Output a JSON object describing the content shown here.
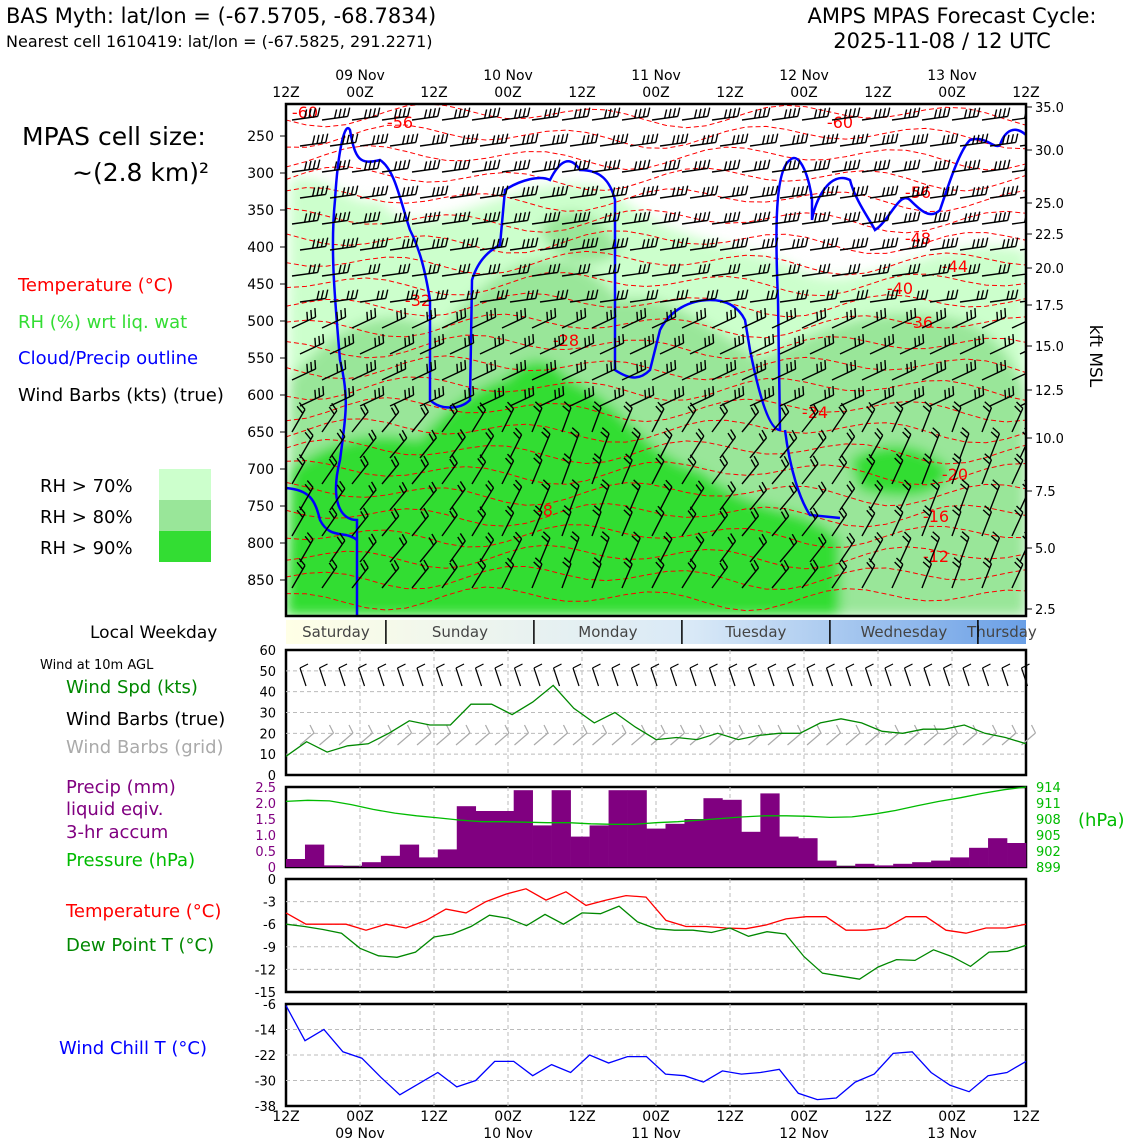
{
  "header": {
    "title_left": "BAS Myth: lat/lon = (-67.5705, -68.7834)",
    "subtitle_left": "Nearest cell 1610419: lat/lon = (-67.5825, 291.2271)",
    "title_right_1": "AMPS MPAS Forecast Cycle:",
    "title_right_2": "2025-11-08 / 12 UTC"
  },
  "legend": {
    "cell_size_1": "MPAS cell size:",
    "cell_size_2": "~(2.8 km)²",
    "temperature": "Temperature (°C)",
    "rh": "RH (%) wrt liq. wat",
    "cloud": "Cloud/Precip outline",
    "barbs": "Wind Barbs (kts) (true)",
    "rh70": "RH > 70%",
    "rh80": "RH > 80%",
    "rh90": "RH > 90%",
    "weekday_label": "Local Weekday",
    "wind10m": "Wind at 10m AGL",
    "wind_spd": "Wind Spd (kts)",
    "wind_barbs_true": "Wind Barbs (true)",
    "wind_barbs_grid": "Wind Barbs (grid)",
    "precip_1": "Precip (mm)",
    "precip_2": "liquid eqiv.",
    "precip_3": "3-hr accum",
    "pressure": "Pressure (hPa)",
    "hpa_unit": "(hPa)",
    "temp2": "Temperature (°C)",
    "dewpt": "Dew Point T (°C)",
    "windchill": "Wind Chill T (°C)",
    "kft_label": "kft MSL"
  },
  "colors": {
    "temp": "#ff0000",
    "rh_green": "#22bb22",
    "cloud": "#0000ff",
    "precip": "#800080",
    "pressure": "#00bb00",
    "dew": "#008800",
    "windchill": "#0000ff",
    "grid_barb": "#aaaaaa",
    "rh70": "#ccffcc",
    "rh80": "#99e699",
    "rh90": "#33dd33"
  },
  "time_axis": {
    "ticks": [
      "12Z",
      "00Z",
      "12Z",
      "00Z",
      "12Z",
      "00Z",
      "12Z",
      "00Z",
      "12Z",
      "00Z",
      "12Z"
    ],
    "days": [
      "09 Nov",
      "10 Nov",
      "11 Nov",
      "12 Nov",
      "13 Nov"
    ],
    "weekdays": [
      "Saturday",
      "Sunday",
      "Monday",
      "Tuesday",
      "Wednesday",
      "Thursday"
    ]
  },
  "chart_data": [
    {
      "type": "area",
      "name": "time-height cross section",
      "y_left_ticks": [
        "250",
        "300",
        "350",
        "400",
        "450",
        "500",
        "550",
        "600",
        "650",
        "700",
        "750",
        "800",
        "850"
      ],
      "y_right_ticks": [
        "35.0",
        "30.0",
        "25.0",
        "22.5",
        "20.0",
        "17.5",
        "15.0",
        "12.5",
        "10.0",
        "7.5",
        "5.0",
        "2.5"
      ],
      "temp_contour_labels": [
        "-60",
        "-56",
        "-60",
        "-56",
        "-48",
        "-44",
        "-40",
        "-36",
        "-32",
        "-28",
        "-24",
        "-20",
        "-16",
        "-12",
        "-8"
      ]
    },
    {
      "type": "line",
      "name": "wind speed 10m",
      "ylim": [
        0,
        60
      ],
      "yticks": [
        "0",
        "10",
        "20",
        "30",
        "40",
        "50",
        "60"
      ],
      "values": [
        9,
        16,
        11,
        14,
        15,
        20,
        26,
        24,
        24,
        34,
        34,
        29,
        35,
        43,
        32,
        25,
        30,
        23,
        17,
        18,
        17,
        20,
        17,
        19,
        20,
        20,
        25,
        27,
        25,
        21,
        20,
        22,
        22,
        24,
        20,
        18,
        15
      ]
    },
    {
      "type": "bar",
      "name": "precip 3-hr accum",
      "ylim": [
        0,
        2.5
      ],
      "yticks": [
        "0",
        "0.5",
        "1.0",
        "1.5",
        "2.0",
        "2.5"
      ],
      "values": [
        0.25,
        0.7,
        0.05,
        0.02,
        0.15,
        0.35,
        0.7,
        0.3,
        0.55,
        1.9,
        1.75,
        1.75,
        2.4,
        1.3,
        2.4,
        0.95,
        1.3,
        2.4,
        2.4,
        1.2,
        1.35,
        1.5,
        2.15,
        2.1,
        1.1,
        2.3,
        0.95,
        0.9,
        0.2,
        0.02,
        0.1,
        0.05,
        0.1,
        0.15,
        0.2,
        0.3,
        0.6,
        0.9,
        0.75
      ],
      "pressure_ticks": [
        "914",
        "911",
        "908",
        "905",
        "902",
        "899"
      ],
      "pressure_lim": [
        899,
        914
      ],
      "pressure_values": [
        911.3,
        911.5,
        911.4,
        910.7,
        909.8,
        909.1,
        908.6,
        908.2,
        907.8,
        907.5,
        907.5,
        907.4,
        907.3,
        907.3,
        907.1,
        907.0,
        907.0,
        907.3,
        907.5,
        907.8,
        908.1,
        908.4,
        908.6,
        908.6,
        908.5,
        908.3,
        908.4,
        908.9,
        909.6,
        910.5,
        911.3,
        912.0,
        912.8,
        913.5,
        914.0
      ]
    },
    {
      "type": "line",
      "name": "temperature and dew point",
      "ylim": [
        -15,
        0
      ],
      "yticks": [
        "0",
        "-3",
        "-6",
        "-9",
        "-12",
        "-15"
      ],
      "series": [
        {
          "name": "Temperature",
          "values": [
            -4.5,
            -6,
            -6,
            -6,
            -6.8,
            -6,
            -6.5,
            -5.5,
            -4,
            -4.5,
            -3,
            -2,
            -1.3,
            -2.8,
            -1.7,
            -3.5,
            -2.8,
            -2.2,
            -2.4,
            -5.5,
            -6.3,
            -6.3,
            -6.5,
            -6.6,
            -6.1,
            -5.3,
            -5,
            -5,
            -6.8,
            -6.8,
            -6.5,
            -5,
            -5,
            -6.8,
            -7.2,
            -6.5,
            -6.5,
            -6
          ]
        },
        {
          "name": "Dew Point",
          "values": [
            -6,
            -6.3,
            -6.7,
            -7.2,
            -9.2,
            -10.2,
            -10.4,
            -9.7,
            -7.7,
            -7.3,
            -6.3,
            -4.8,
            -5.2,
            -6.2,
            -4.7,
            -6,
            -4.5,
            -4.6,
            -3.6,
            -5.7,
            -6.6,
            -6.8,
            -6.8,
            -7.1,
            -6.5,
            -7.6,
            -7,
            -7.3,
            -10.3,
            -12.5,
            -12.9,
            -13.3,
            -11.7,
            -10.7,
            -10.8,
            -9.4,
            -10.3,
            -11.6,
            -9.7,
            -9.6,
            -8.8
          ]
        }
      ]
    },
    {
      "type": "line",
      "name": "wind chill",
      "ylim": [
        -38,
        -6
      ],
      "yticks": [
        "-6",
        "-14",
        "-22",
        "-30",
        "-38"
      ],
      "values": [
        -6.5,
        -17.5,
        -14,
        -21,
        -23,
        -29,
        -34.5,
        -31,
        -27.5,
        -32,
        -30,
        -24,
        -24,
        -28.5,
        -25,
        -27.5,
        -22,
        -24.5,
        -22.5,
        -22.5,
        -28,
        -28.5,
        -30.5,
        -27,
        -28,
        -27.5,
        -26.5,
        -34,
        -36,
        -35.5,
        -30.5,
        -28,
        -21.5,
        -21,
        -27.5,
        -31.5,
        -33.5,
        -28.5,
        -27.5,
        -24
      ]
    }
  ]
}
